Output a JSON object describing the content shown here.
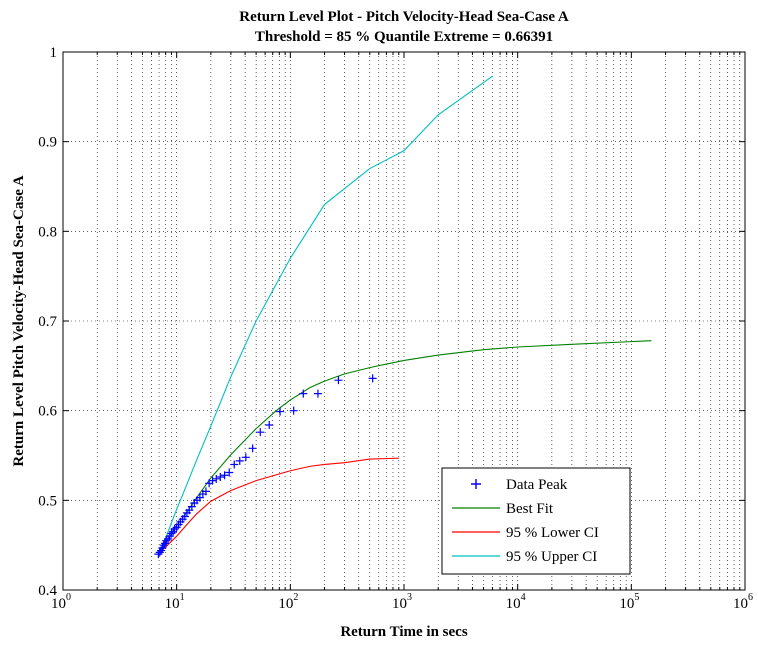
{
  "chart_data": {
    "type": "line",
    "title": "Return Level Plot - Pitch Velocity-Head Sea-Case A",
    "subtitle": "Threshold = 85 % Quantile  Extreme = 0.66391",
    "xlabel": "Return Time in secs",
    "ylabel": "Return Level Pitch Velocity-Head Sea-Case A",
    "xscale": "log",
    "xlim": [
      1,
      1000000
    ],
    "ylim": [
      0.4,
      1.0
    ],
    "xticks": [
      {
        "base": "10",
        "exp": "0",
        "value": 1
      },
      {
        "base": "10",
        "exp": "1",
        "value": 10
      },
      {
        "base": "10",
        "exp": "2",
        "value": 100
      },
      {
        "base": "10",
        "exp": "3",
        "value": 1000
      },
      {
        "base": "10",
        "exp": "4",
        "value": 10000
      },
      {
        "base": "10",
        "exp": "5",
        "value": 100000
      },
      {
        "base": "10",
        "exp": "6",
        "value": 1000000
      }
    ],
    "yticks": [
      "0.4",
      "0.5",
      "0.6",
      "0.7",
      "0.8",
      "0.9",
      "1"
    ],
    "grid": true,
    "legend_position": "bottom-right",
    "series": [
      {
        "name": "Data Peak",
        "kind": "scatter",
        "marker": "+",
        "color": "#0000ff",
        "points": [
          [
            6.9,
            0.44
          ],
          [
            7.1,
            0.442
          ],
          [
            7.3,
            0.444
          ],
          [
            7.5,
            0.447
          ],
          [
            7.7,
            0.45
          ],
          [
            7.9,
            0.452
          ],
          [
            8.1,
            0.455
          ],
          [
            8.4,
            0.457
          ],
          [
            8.7,
            0.46
          ],
          [
            9.0,
            0.463
          ],
          [
            9.3,
            0.465
          ],
          [
            9.6,
            0.468
          ],
          [
            10.0,
            0.47
          ],
          [
            10.4,
            0.473
          ],
          [
            10.8,
            0.476
          ],
          [
            11.3,
            0.479
          ],
          [
            11.8,
            0.482
          ],
          [
            12.3,
            0.486
          ],
          [
            12.9,
            0.489
          ],
          [
            13.6,
            0.493
          ],
          [
            14.3,
            0.497
          ],
          [
            15.1,
            0.5
          ],
          [
            16.0,
            0.503
          ],
          [
            17.0,
            0.507
          ],
          [
            18.1,
            0.51
          ],
          [
            19.3,
            0.519
          ],
          [
            20.7,
            0.522
          ],
          [
            22.3,
            0.524
          ],
          [
            24.2,
            0.526
          ],
          [
            26.4,
            0.528
          ],
          [
            29.0,
            0.531
          ],
          [
            32.1,
            0.54
          ],
          [
            35.9,
            0.544
          ],
          [
            40.6,
            0.548
          ],
          [
            46.6,
            0.558
          ],
          [
            54.4,
            0.576
          ],
          [
            65.2,
            0.584
          ],
          [
            81.2,
            0.599
          ],
          [
            107,
            0.6
          ],
          [
            130,
            0.619
          ],
          [
            175,
            0.619
          ],
          [
            265,
            0.634
          ],
          [
            530,
            0.636
          ]
        ]
      },
      {
        "name": "Best Fit",
        "kind": "line",
        "color": "#008000",
        "points": [
          [
            6.9,
            0.44
          ],
          [
            8,
            0.452
          ],
          [
            10,
            0.472
          ],
          [
            12.5,
            0.488
          ],
          [
            15,
            0.503
          ],
          [
            20,
            0.525
          ],
          [
            30,
            0.551
          ],
          [
            50,
            0.58
          ],
          [
            75,
            0.6
          ],
          [
            100,
            0.612
          ],
          [
            150,
            0.626
          ],
          [
            200,
            0.633
          ],
          [
            300,
            0.641
          ],
          [
            500,
            0.648
          ],
          [
            700,
            0.652
          ],
          [
            1000,
            0.656
          ],
          [
            2000,
            0.662
          ],
          [
            5000,
            0.668
          ],
          [
            10000,
            0.671
          ],
          [
            30000,
            0.674
          ],
          [
            100000,
            0.677
          ],
          [
            150000,
            0.678
          ]
        ]
      },
      {
        "name": "95 % Lower CI",
        "kind": "line",
        "color": "#ff0000",
        "points": [
          [
            6.9,
            0.44
          ],
          [
            8,
            0.448
          ],
          [
            10,
            0.46
          ],
          [
            12.5,
            0.474
          ],
          [
            15,
            0.485
          ],
          [
            20,
            0.499
          ],
          [
            30,
            0.511
          ],
          [
            50,
            0.522
          ],
          [
            100,
            0.533
          ],
          [
            150,
            0.538
          ],
          [
            200,
            0.54
          ],
          [
            300,
            0.542
          ],
          [
            500,
            0.546
          ],
          [
            900,
            0.547
          ]
        ]
      },
      {
        "name": "95 % Upper CI",
        "kind": "line",
        "color": "#00c0c0",
        "points": [
          [
            6.9,
            0.44
          ],
          [
            8,
            0.458
          ],
          [
            10,
            0.49
          ],
          [
            12.5,
            0.52
          ],
          [
            15,
            0.545
          ],
          [
            20,
            0.583
          ],
          [
            30,
            0.638
          ],
          [
            50,
            0.7
          ],
          [
            100,
            0.77
          ],
          [
            200,
            0.83
          ],
          [
            500,
            0.87
          ],
          [
            1000,
            0.89
          ],
          [
            2000,
            0.93
          ],
          [
            6000,
            0.973
          ]
        ]
      }
    ]
  }
}
